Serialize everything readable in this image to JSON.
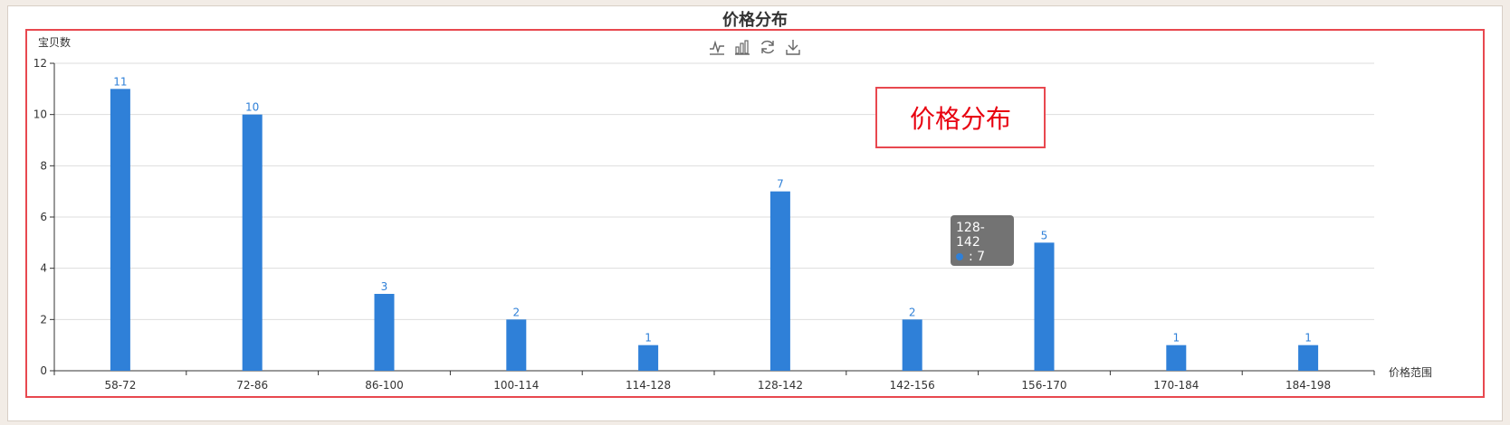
{
  "page": {
    "title": "价格分布"
  },
  "toolbar": {
    "icons": [
      "line-chart-icon",
      "bar-chart-icon",
      "restore-icon",
      "download-icon"
    ]
  },
  "annotation": {
    "text": "价格分布"
  },
  "tooltip": {
    "title": "128-142",
    "value": ": 7",
    "dot_color": "#2f80d8"
  },
  "colors": {
    "bar": "#2f80d8",
    "accent": "#e8484f"
  },
  "chart_data": {
    "type": "bar",
    "categories": [
      "58-72",
      "72-86",
      "86-100",
      "100-114",
      "114-128",
      "128-142",
      "142-156",
      "156-170",
      "170-184",
      "184-198"
    ],
    "values": [
      11,
      10,
      3,
      2,
      1,
      7,
      2,
      5,
      1,
      1
    ],
    "title": "价格分布",
    "xlabel": "价格范围",
    "ylabel": "宝贝数",
    "ylim": [
      0,
      12
    ],
    "yticks": [
      0,
      2,
      4,
      6,
      8,
      10,
      12
    ],
    "grid": true,
    "legend": "none"
  }
}
